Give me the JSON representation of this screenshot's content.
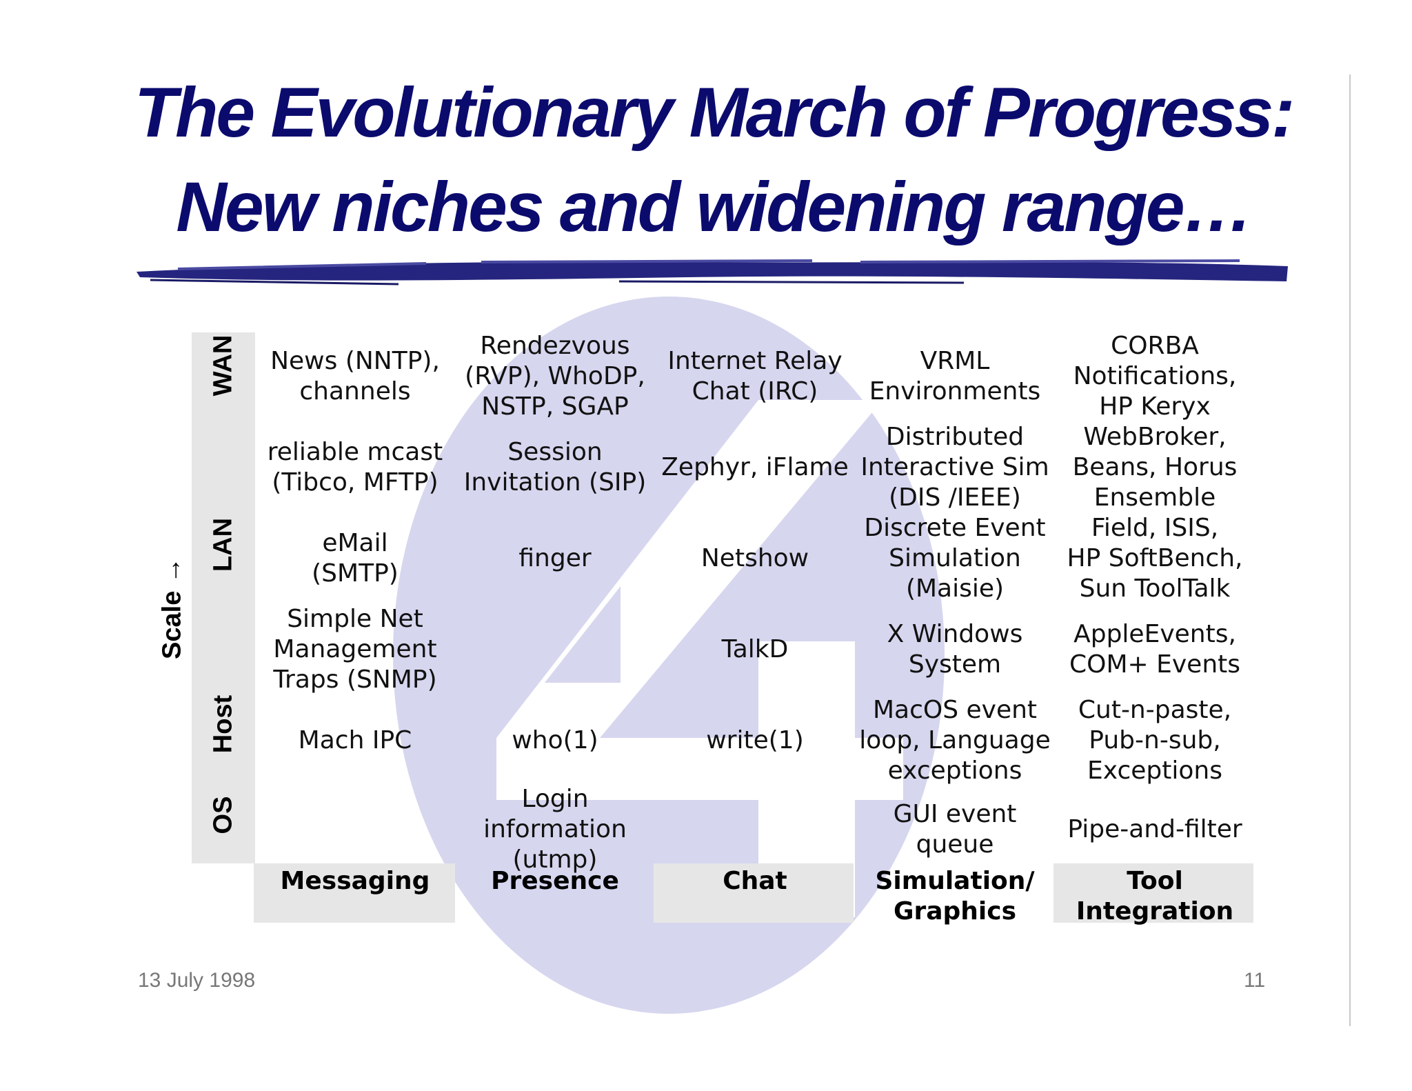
{
  "title": {
    "line1": "The Evolutionary March of Progress:",
    "line2": "New niches and widening range…"
  },
  "axis": {
    "label": "Scale →"
  },
  "rows": [
    "WAN",
    "LAN",
    "Host",
    "OS"
  ],
  "columns": [
    "Messaging",
    "Presence",
    "Chat",
    "Simulation/\nGraphics",
    "Tool\nIntegration"
  ],
  "grid": {
    "r1": [
      "News (NNTP),\nchannels",
      "Rendezvous\n(RVP), WhoDP,\nNSTP, SGAP",
      "Internet Relay\nChat (IRC)",
      "VRML\nEnvironments",
      "CORBA\nNotifications,\nHP Keryx"
    ],
    "r2": [
      "reliable mcast\n(Tibco, MFTP)",
      "Session\nInvitation (SIP)",
      "Zephyr, iFlame",
      "Distributed\nInteractive Sim\n(DIS /IEEE)",
      "WebBroker,\nBeans, Horus\nEnsemble"
    ],
    "r3": [
      "eMail\n(SMTP)",
      "finger",
      "Netshow",
      "Discrete Event\nSimulation\n(Maisie)",
      "Field, ISIS,\nHP SoftBench,\nSun ToolTalk"
    ],
    "r4": [
      "Simple Net\nManagement\nTraps (SNMP)",
      "",
      "TalkD",
      "X Windows\nSystem",
      "AppleEvents,\nCOM+ Events"
    ],
    "r5": [
      "Mach IPC",
      "who(1)",
      "write(1)",
      "MacOS event\nloop, Language\nexceptions",
      "Cut-n-paste,\nPub-n-sub,\nExceptions"
    ],
    "r6": [
      "",
      "Login\ninformation\n(utmp)",
      "",
      "GUI event\nqueue",
      "Pipe-and-filter"
    ]
  },
  "footer": {
    "date": "13 July 1998",
    "page": "11"
  },
  "colors": {
    "title": "#0b0b6e",
    "logo": "#d6d6ef",
    "stripe": "#e6e6e6"
  }
}
